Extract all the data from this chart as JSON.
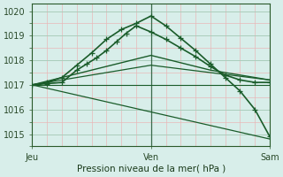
{
  "bg_color": "#d8eeea",
  "grid_minor_color": "#e8b8b8",
  "grid_major_color": "#aaccbb",
  "line_color": "#1a5c2a",
  "vline_color": "#3a6a4a",
  "title": "Pression niveau de la mer( hPa )",
  "xlim": [
    0,
    48
  ],
  "ylim": [
    1014.5,
    1020.3
  ],
  "yticks": [
    1015,
    1016,
    1017,
    1018,
    1019,
    1020
  ],
  "x_ticks": [
    0,
    24,
    48
  ],
  "x_tick_labels": [
    "Jeu",
    "Ven",
    "Sam"
  ],
  "vline_x": 24,
  "series": [
    {
      "x": [
        0,
        3,
        6,
        9,
        11,
        13,
        15,
        17,
        19,
        21,
        24,
        27,
        30,
        33,
        36,
        39,
        42,
        45,
        48
      ],
      "y": [
        1017.0,
        1017.05,
        1017.1,
        1017.6,
        1017.85,
        1018.1,
        1018.4,
        1018.75,
        1019.1,
        1019.4,
        1019.15,
        1018.85,
        1018.5,
        1018.15,
        1017.75,
        1017.4,
        1017.2,
        1017.1,
        1017.1
      ],
      "lw": 1.2,
      "marker": true
    },
    {
      "x": [
        0,
        3,
        6,
        9,
        12,
        15,
        18,
        21,
        24,
        27,
        30,
        33,
        36,
        39,
        42,
        45,
        48
      ],
      "y": [
        1017.0,
        1017.1,
        1017.3,
        1017.8,
        1018.3,
        1018.85,
        1019.25,
        1019.5,
        1019.8,
        1019.4,
        1018.9,
        1018.4,
        1017.85,
        1017.3,
        1016.75,
        1016.0,
        1014.9
      ],
      "lw": 1.2,
      "marker": true
    },
    {
      "x": [
        0,
        24,
        36,
        48
      ],
      "y": [
        1017.0,
        1018.2,
        1017.6,
        1017.2
      ],
      "lw": 1.0,
      "marker": false
    },
    {
      "x": [
        0,
        24,
        36,
        48
      ],
      "y": [
        1017.0,
        1017.8,
        1017.5,
        1017.2
      ],
      "lw": 0.9,
      "marker": false
    },
    {
      "x": [
        0,
        48
      ],
      "y": [
        1017.0,
        1017.0
      ],
      "lw": 0.8,
      "marker": false
    },
    {
      "x": [
        0,
        48
      ],
      "y": [
        1017.0,
        1014.8
      ],
      "lw": 0.9,
      "marker": false
    }
  ],
  "marker_symbol": "+",
  "marker_size": 4,
  "marker_edge_width": 0.9
}
